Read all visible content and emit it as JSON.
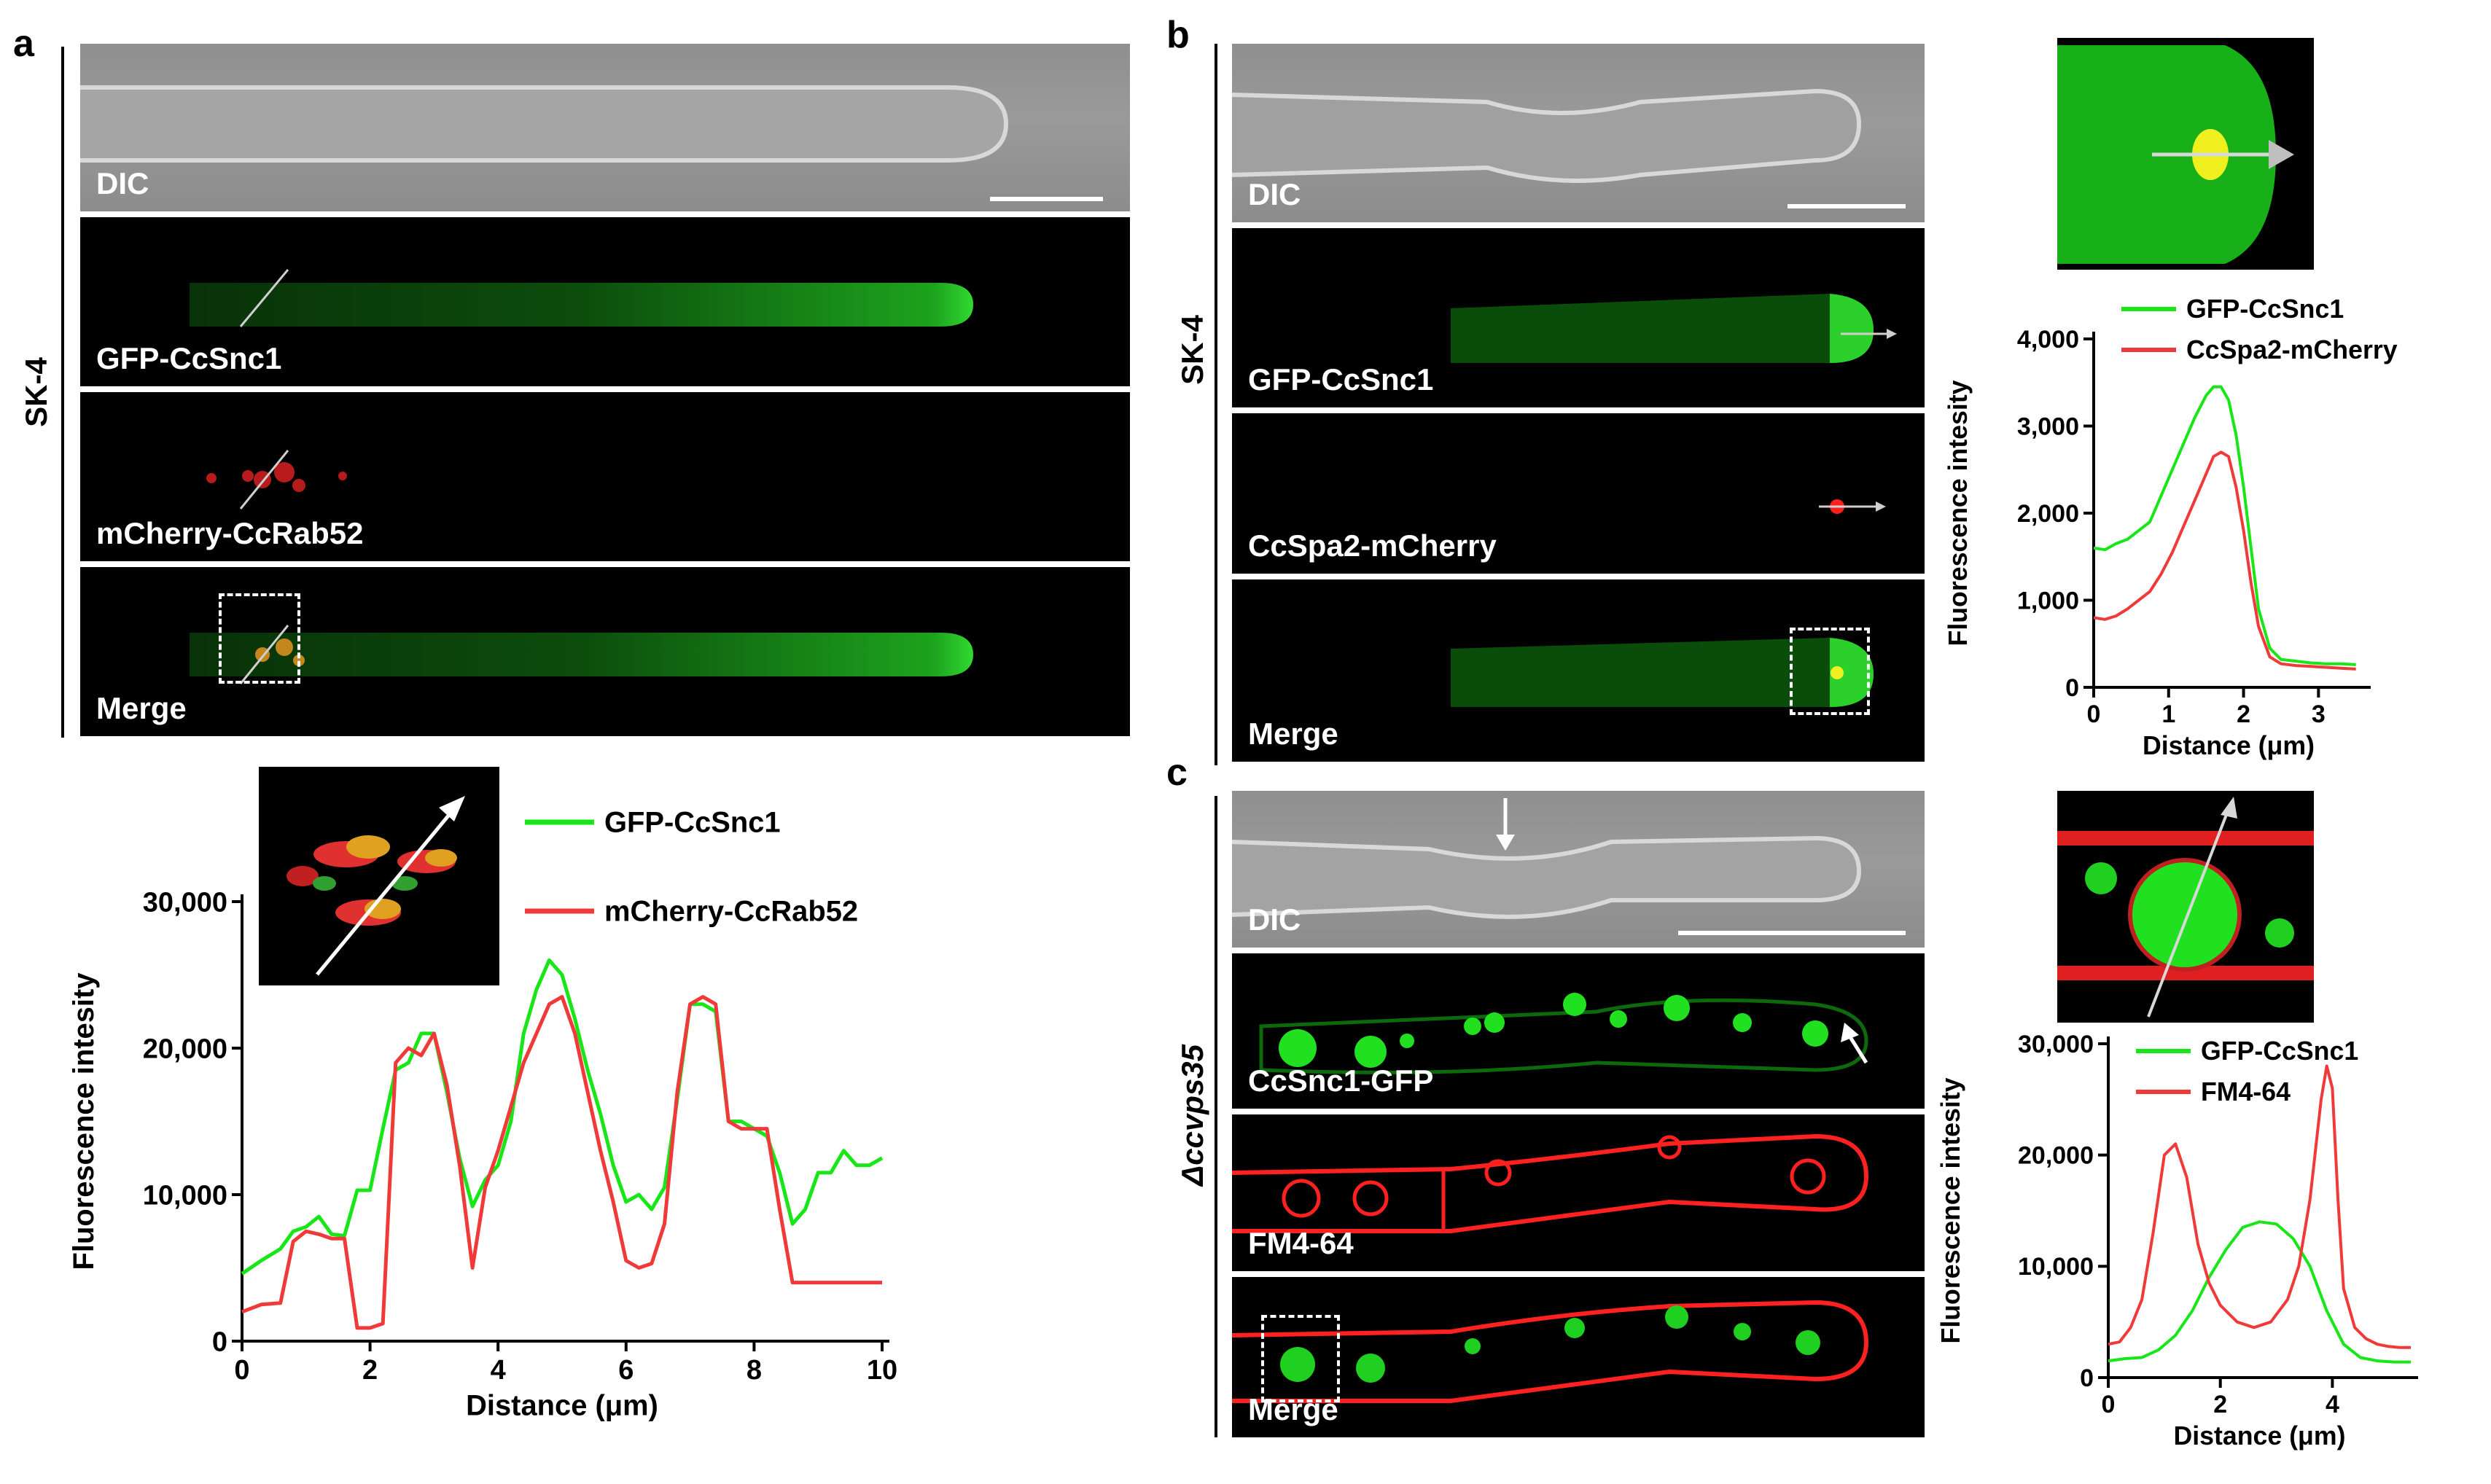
{
  "figure": {
    "panels": {
      "a": {
        "letter": "a",
        "strain": "SK-4",
        "images": [
          "DIC",
          "GFP-CcSnc1",
          "mCherry-CcRab52",
          "Merge"
        ]
      },
      "b": {
        "letter": "b",
        "strain": "SK-4",
        "images": [
          "DIC",
          "GFP-CcSnc1",
          "CcSpa2-mCherry",
          "Merge"
        ]
      },
      "c": {
        "letter": "c",
        "strain": "Δccvps35",
        "images": [
          "DIC",
          "CcSnc1-GFP",
          "FM4-64",
          "Merge"
        ]
      }
    }
  },
  "colors": {
    "green": "#19e619",
    "red": "#f03a3a",
    "axis": "#000000"
  },
  "chart_data": [
    {
      "id": "a",
      "type": "line",
      "xlabel": "Distance (μm)",
      "ylabel": "Fluorescence intesity",
      "xlim": [
        0,
        10
      ],
      "ylim": [
        0,
        30000
      ],
      "xticks": [
        "0",
        "2",
        "4",
        "6",
        "8",
        "10"
      ],
      "yticks": [
        "0",
        "10,000",
        "20,000",
        "30,000"
      ],
      "legend": "top-right",
      "series": [
        {
          "name": "GFP-CcSnc1",
          "color": "#19e619",
          "x": [
            0,
            0.3,
            0.6,
            0.8,
            1.0,
            1.2,
            1.4,
            1.6,
            1.8,
            2.0,
            2.2,
            2.4,
            2.6,
            2.8,
            3.0,
            3.2,
            3.4,
            3.6,
            3.8,
            4.0,
            4.2,
            4.4,
            4.6,
            4.8,
            5.0,
            5.2,
            5.4,
            5.6,
            5.8,
            6.0,
            6.2,
            6.4,
            6.6,
            6.8,
            7.0,
            7.2,
            7.4,
            7.6,
            7.8,
            8.0,
            8.2,
            8.4,
            8.6,
            8.8,
            9.0,
            9.2,
            9.4,
            9.6,
            9.8,
            10.0
          ],
          "y": [
            4600,
            5500,
            6300,
            7500,
            7800,
            8500,
            7300,
            7200,
            10300,
            10300,
            14500,
            18500,
            19000,
            21000,
            21000,
            17000,
            12500,
            9200,
            11000,
            12000,
            15000,
            21000,
            24000,
            26000,
            25000,
            22000,
            18500,
            15500,
            12000,
            9500,
            10000,
            9000,
            10500,
            16500,
            23000,
            23000,
            22500,
            15000,
            15000,
            14500,
            14000,
            11500,
            8000,
            9000,
            11500,
            11500,
            13000,
            12000,
            12000,
            12500
          ]
        },
        {
          "name": "mCherry-CcRab52",
          "color": "#f03a3a",
          "x": [
            0,
            0.3,
            0.6,
            0.8,
            1.0,
            1.2,
            1.4,
            1.6,
            1.8,
            2.0,
            2.2,
            2.4,
            2.6,
            2.8,
            3.0,
            3.2,
            3.4,
            3.6,
            3.8,
            4.0,
            4.2,
            4.4,
            4.6,
            4.8,
            5.0,
            5.2,
            5.4,
            5.6,
            5.8,
            6.0,
            6.2,
            6.4,
            6.6,
            6.8,
            7.0,
            7.2,
            7.4,
            7.6,
            7.8,
            8.0,
            8.2,
            8.4,
            8.6,
            8.8,
            9.0,
            9.2,
            9.4,
            9.6,
            9.8,
            10.0
          ],
          "y": [
            2000,
            2500,
            2600,
            6800,
            7500,
            7300,
            7000,
            7000,
            900,
            900,
            1200,
            19000,
            20000,
            19500,
            21000,
            17500,
            12000,
            5000,
            10500,
            13000,
            16000,
            19000,
            21000,
            23000,
            23500,
            21000,
            17000,
            13000,
            9500,
            5500,
            5000,
            5300,
            8000,
            17000,
            23000,
            23500,
            23000,
            15000,
            14500,
            14500,
            14500,
            9000,
            4000,
            4000,
            4000,
            4000,
            4000,
            4000,
            4000,
            4000
          ]
        }
      ]
    },
    {
      "id": "b",
      "type": "line",
      "xlabel": "Distance (μm)",
      "ylabel": "Fluorescence intesity",
      "xlim": [
        0,
        3.6
      ],
      "ylim": [
        0,
        4000
      ],
      "xticks": [
        "0",
        "1",
        "2",
        "3"
      ],
      "yticks": [
        "0",
        "1,000",
        "2,000",
        "3,000",
        "4,000"
      ],
      "legend": "top-right",
      "series": [
        {
          "name": "GFP-CcSnc1",
          "color": "#19e619",
          "x": [
            0,
            0.15,
            0.3,
            0.45,
            0.6,
            0.75,
            0.9,
            1.05,
            1.2,
            1.35,
            1.5,
            1.6,
            1.7,
            1.8,
            1.9,
            2.0,
            2.1,
            2.2,
            2.35,
            2.5,
            2.7,
            2.9,
            3.1,
            3.3,
            3.5
          ],
          "y": [
            1600,
            1580,
            1650,
            1700,
            1800,
            1900,
            2200,
            2500,
            2800,
            3100,
            3350,
            3450,
            3450,
            3300,
            2900,
            2300,
            1600,
            900,
            450,
            320,
            300,
            280,
            270,
            270,
            260
          ]
        },
        {
          "name": "CcSpa2-mCherry",
          "color": "#f03a3a",
          "x": [
            0,
            0.15,
            0.3,
            0.45,
            0.6,
            0.75,
            0.9,
            1.05,
            1.2,
            1.35,
            1.5,
            1.6,
            1.7,
            1.8,
            1.9,
            2.0,
            2.1,
            2.2,
            2.35,
            2.5,
            2.7,
            2.9,
            3.1,
            3.3,
            3.5
          ],
          "y": [
            800,
            780,
            820,
            900,
            1000,
            1100,
            1300,
            1550,
            1850,
            2150,
            2450,
            2650,
            2700,
            2650,
            2300,
            1800,
            1200,
            700,
            350,
            270,
            250,
            240,
            230,
            220,
            210
          ]
        }
      ]
    },
    {
      "id": "c",
      "type": "line",
      "xlabel": "Distance (μm)",
      "ylabel": "Fluorescence intesity",
      "xlim": [
        0,
        5.4
      ],
      "ylim": [
        0,
        30000
      ],
      "xticks": [
        "0",
        "2",
        "4"
      ],
      "yticks": [
        "0",
        "10,000",
        "20,000",
        "30,000"
      ],
      "legend": "top-right",
      "series": [
        {
          "name": "GFP-CcSnc1",
          "color": "#19e619",
          "x": [
            0,
            0.3,
            0.6,
            0.9,
            1.2,
            1.5,
            1.8,
            2.1,
            2.4,
            2.7,
            3.0,
            3.3,
            3.6,
            3.9,
            4.2,
            4.5,
            4.8,
            5.1,
            5.4
          ],
          "y": [
            1500,
            1700,
            1800,
            2500,
            3800,
            6000,
            9000,
            11500,
            13500,
            14000,
            13800,
            12500,
            10000,
            6000,
            3000,
            1800,
            1500,
            1400,
            1400
          ]
        },
        {
          "name": "FM4-64",
          "color": "#f03a3a",
          "x": [
            0,
            0.2,
            0.4,
            0.6,
            0.8,
            1.0,
            1.2,
            1.4,
            1.6,
            1.8,
            2.0,
            2.3,
            2.6,
            2.9,
            3.2,
            3.4,
            3.6,
            3.8,
            3.9,
            4.0,
            4.1,
            4.2,
            4.4,
            4.6,
            4.8,
            5.0,
            5.2,
            5.4
          ],
          "y": [
            3000,
            3200,
            4500,
            7000,
            13000,
            20000,
            21000,
            18000,
            12000,
            8500,
            6500,
            5000,
            4500,
            5000,
            7000,
            10000,
            16000,
            25000,
            28000,
            26000,
            16000,
            8000,
            4500,
            3500,
            3000,
            2800,
            2700,
            2700
          ]
        }
      ]
    }
  ]
}
